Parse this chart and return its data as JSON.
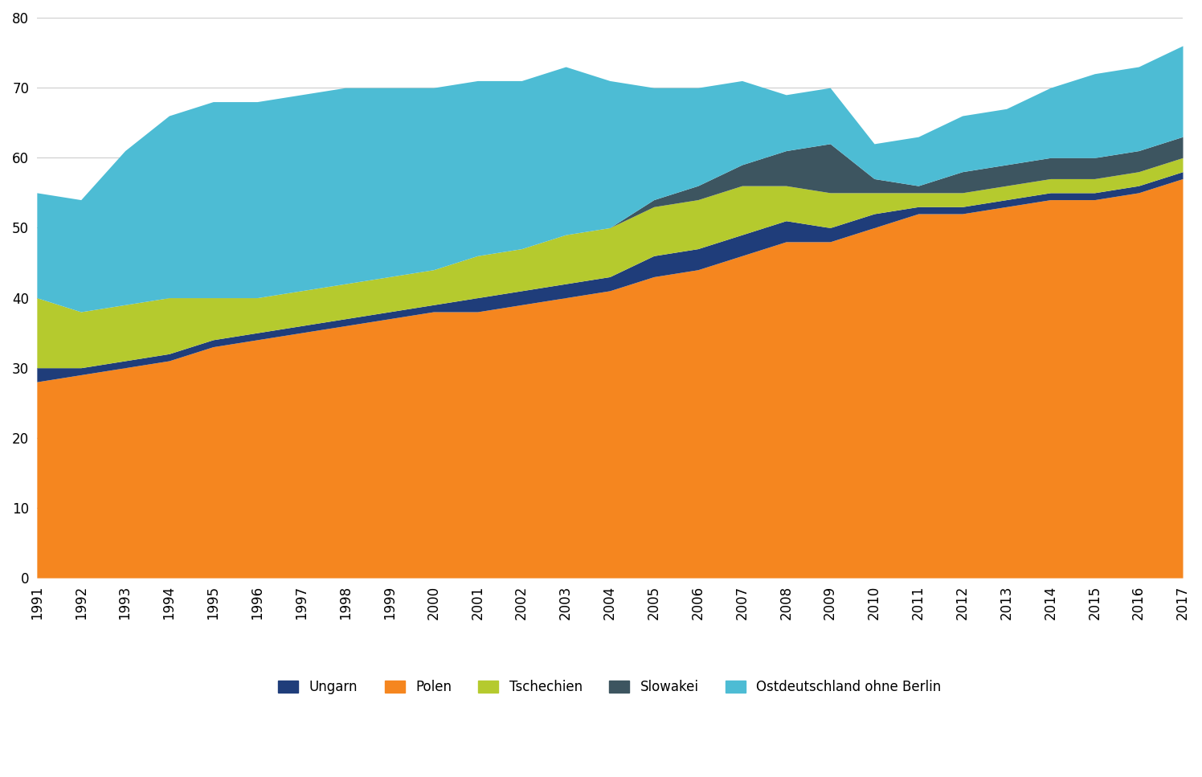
{
  "years": [
    1991,
    1992,
    1993,
    1994,
    1995,
    1996,
    1997,
    1998,
    1999,
    2000,
    2001,
    2002,
    2003,
    2004,
    2005,
    2006,
    2007,
    2008,
    2009,
    2010,
    2011,
    2012,
    2013,
    2014,
    2015,
    2016,
    2017
  ],
  "Polen": [
    28,
    29,
    30,
    31,
    33,
    34,
    35,
    36,
    37,
    38,
    38,
    39,
    40,
    41,
    43,
    44,
    46,
    48,
    48,
    50,
    52,
    52,
    53,
    54,
    54,
    55,
    57
  ],
  "Ungarn": [
    2,
    1,
    1,
    1,
    1,
    1,
    1,
    1,
    1,
    1,
    2,
    2,
    2,
    2,
    3,
    3,
    3,
    3,
    2,
    2,
    1,
    1,
    1,
    1,
    1,
    1,
    1
  ],
  "Tschechien": [
    10,
    8,
    8,
    8,
    6,
    5,
    5,
    5,
    5,
    5,
    6,
    6,
    7,
    7,
    7,
    7,
    7,
    5,
    5,
    3,
    2,
    2,
    2,
    2,
    2,
    2,
    2
  ],
  "Slowakei": [
    0,
    0,
    0,
    0,
    0,
    0,
    0,
    0,
    0,
    0,
    0,
    0,
    0,
    0,
    1,
    2,
    3,
    5,
    7,
    2,
    1,
    3,
    3,
    3,
    3,
    3,
    3
  ],
  "Ostdeutschland_ohne_Berlin": [
    15,
    16,
    22,
    26,
    28,
    28,
    28,
    28,
    27,
    26,
    25,
    24,
    24,
    21,
    16,
    14,
    12,
    8,
    8,
    5,
    7,
    8,
    8,
    10,
    12,
    12,
    13
  ],
  "colors": {
    "Polen": "#f5861f",
    "Ungarn": "#1f3d7a",
    "Tschechien": "#b5ca2e",
    "Slowakei": "#3d5560",
    "Ostdeutschland_ohne_Berlin": "#4dbcd4"
  },
  "legend_labels": [
    "Ungarn",
    "Polen",
    "Tschechien",
    "Slowakei",
    "Ostdeutschland ohne Berlin"
  ],
  "ylim": [
    0,
    80
  ],
  "yticks": [
    0,
    10,
    20,
    30,
    40,
    50,
    60,
    70,
    80
  ],
  "background_color": "#ffffff",
  "grid_color": "#cccccc"
}
